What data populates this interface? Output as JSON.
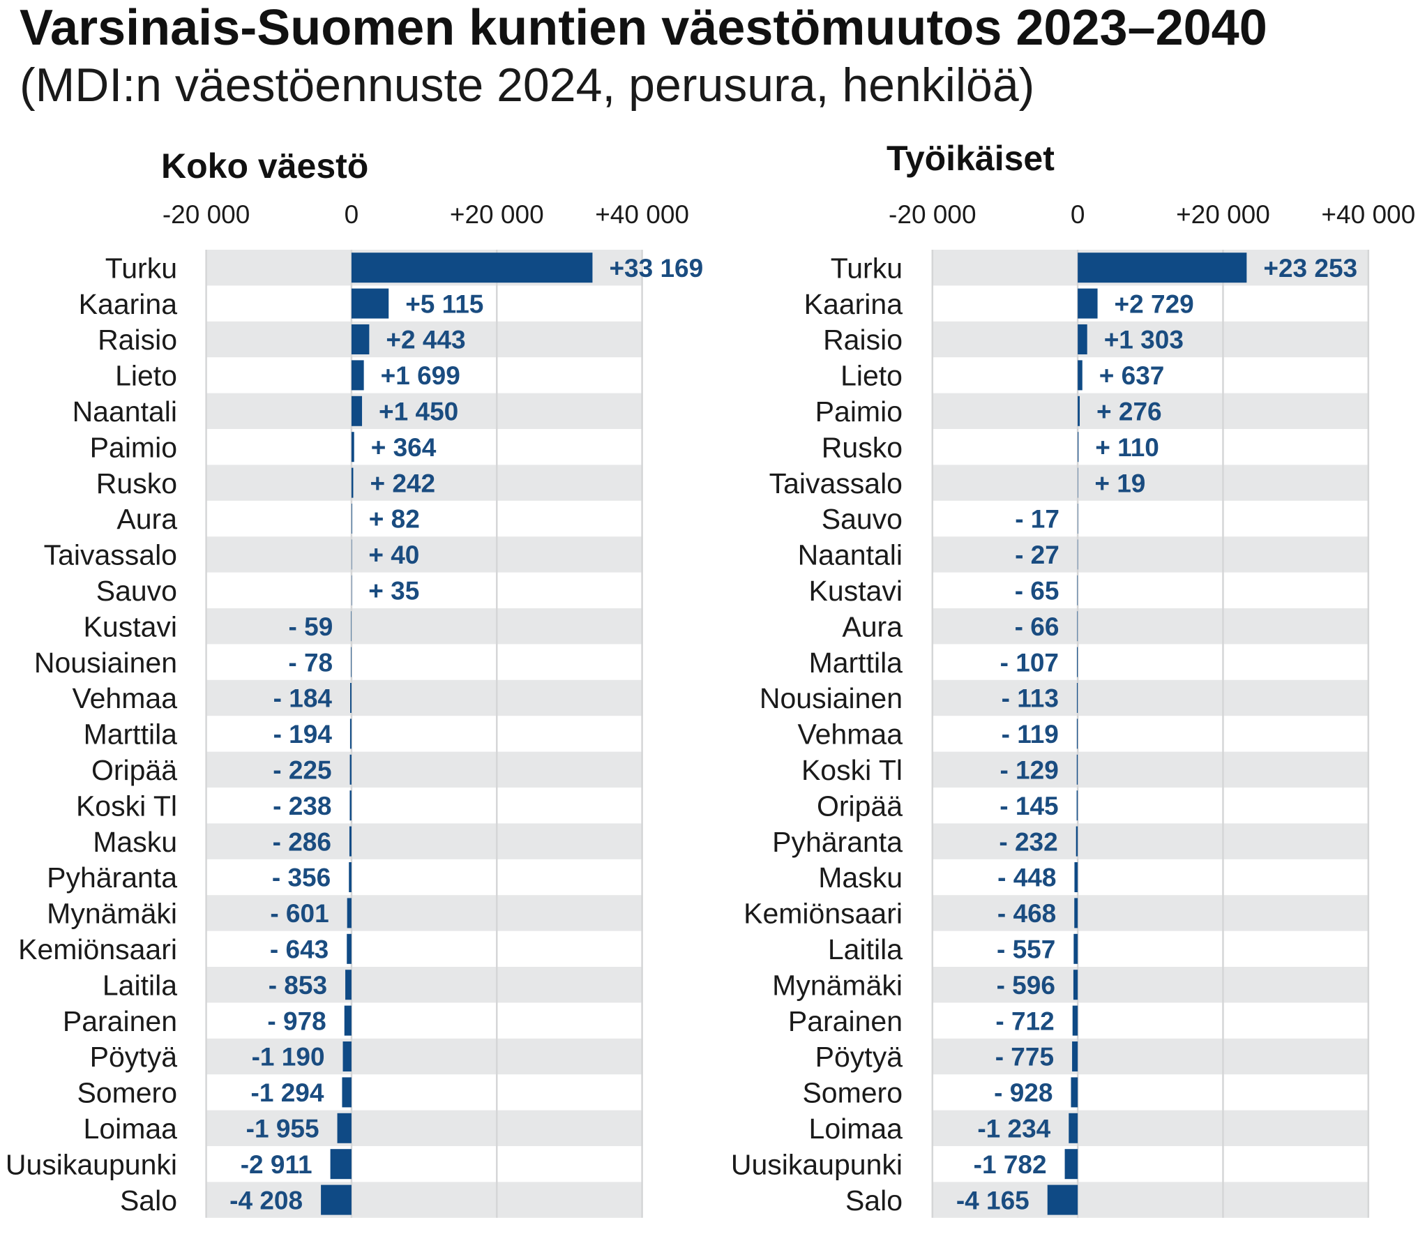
{
  "title": "Varsinais-Suomen kuntien väestömuutos 2023–2040",
  "subtitle": "(MDI:n väestöennuste 2024, perusura, henkilöä)",
  "colors": {
    "bar": "#0f4a85",
    "label": "#1a4c80",
    "band": "#e6e7e8",
    "grid": "#d5d6d7"
  },
  "chart_data": [
    {
      "type": "bar",
      "orientation": "horizontal",
      "title": "Koko väestö",
      "xlim": [
        -20000,
        40000
      ],
      "ticks": [
        -20000,
        0,
        20000,
        40000
      ],
      "tick_labels": [
        "-20 000",
        "0",
        "+20 000",
        "+40 000"
      ],
      "grid": true,
      "categories": [
        "Turku",
        "Kaarina",
        "Raisio",
        "Lieto",
        "Naantali",
        "Paimio",
        "Rusko",
        "Aura",
        "Taivassalo",
        "Sauvo",
        "Kustavi",
        "Nousiainen",
        "Vehmaa",
        "Marttila",
        "Oripää",
        "Koski Tl",
        "Masku",
        "Pyhäranta",
        "Mynämäki",
        "Kemiönsaari",
        "Laitila",
        "Parainen",
        "Pöytyä",
        "Somero",
        "Loimaa",
        "Uusikaupunki",
        "Salo"
      ],
      "values": [
        33169,
        5115,
        2443,
        1699,
        1450,
        364,
        242,
        82,
        40,
        35,
        -59,
        -78,
        -184,
        -194,
        -225,
        -238,
        -286,
        -356,
        -601,
        -643,
        -853,
        -978,
        -1190,
        -1294,
        -1955,
        -2911,
        -4208
      ],
      "value_labels": [
        "+33 169",
        "+5 115",
        "+2 443",
        "+1 699",
        "+1 450",
        "+ 364",
        "+ 242",
        "+ 82",
        "+ 40",
        "+ 35",
        "- 59",
        "- 78",
        "- 184",
        "- 194",
        "- 225",
        "- 238",
        "- 286",
        "- 356",
        "- 601",
        "- 643",
        "- 853",
        "- 978",
        "-1 190",
        "-1 294",
        "-1 955",
        "-2 911",
        "-4 208"
      ]
    },
    {
      "type": "bar",
      "orientation": "horizontal",
      "title": "Työikäiset",
      "xlim": [
        -20000,
        40000
      ],
      "ticks": [
        -20000,
        0,
        20000,
        40000
      ],
      "tick_labels": [
        "-20 000",
        "0",
        "+20 000",
        "+40 000"
      ],
      "grid": true,
      "categories": [
        "Turku",
        "Kaarina",
        "Raisio",
        "Lieto",
        "Paimio",
        "Rusko",
        "Taivassalo",
        "Sauvo",
        "Naantali",
        "Kustavi",
        "Aura",
        "Marttila",
        "Nousiainen",
        "Vehmaa",
        "Koski Tl",
        "Oripää",
        "Pyhäranta",
        "Masku",
        "Kemiönsaari",
        "Laitila",
        "Mynämäki",
        "Parainen",
        "Pöytyä",
        "Somero",
        "Loimaa",
        "Uusikaupunki",
        "Salo"
      ],
      "values": [
        23253,
        2729,
        1303,
        637,
        276,
        110,
        19,
        -17,
        -27,
        -65,
        -66,
        -107,
        -113,
        -119,
        -129,
        -145,
        -232,
        -448,
        -468,
        -557,
        -596,
        -712,
        -775,
        -928,
        -1234,
        -1782,
        -4165
      ],
      "value_labels": [
        "+23 253",
        "+2 729",
        "+1 303",
        "+ 637",
        "+ 276",
        "+ 110",
        "+ 19",
        "- 17",
        "- 27",
        "- 65",
        "- 66",
        "- 107",
        "- 113",
        "- 119",
        "- 129",
        "- 145",
        "- 232",
        "- 448",
        "- 468",
        "- 557",
        "- 596",
        "- 712",
        "- 775",
        "- 928",
        "-1 234",
        "-1 782",
        "-4 165"
      ]
    }
  ]
}
